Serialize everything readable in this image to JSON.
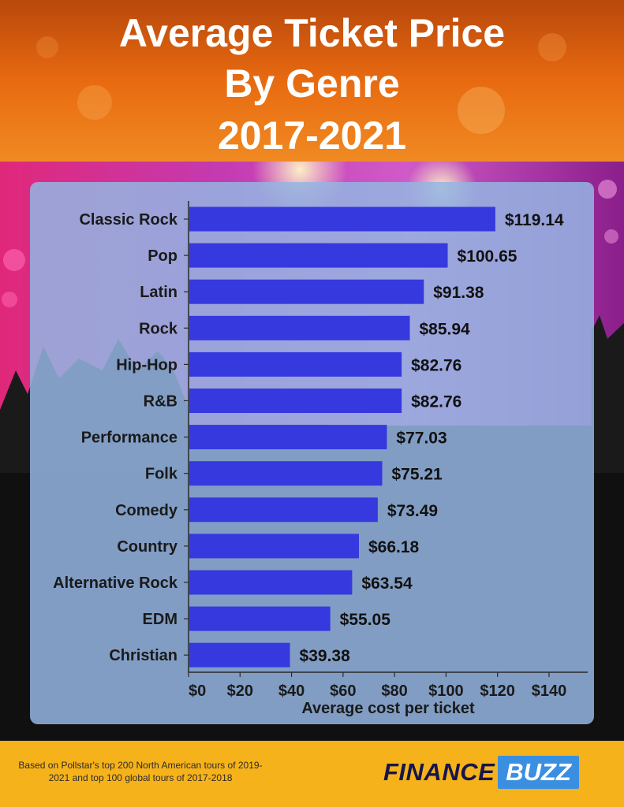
{
  "header": {
    "title_line1": "Average Ticket Price",
    "title_line2": "By Genre",
    "title_line3": "2017-2021"
  },
  "footer": {
    "note": "Based on Pollstar's top 200 North American tours of 2019-2021 and top 100 global tours of 2017-2018",
    "logo_part1": "FINANCE",
    "logo_part2": "BUZZ"
  },
  "colors": {
    "bar": "#3539de",
    "panel": "#94b4e2",
    "footer": "#f6b21b",
    "header_orange": "#e86a10",
    "logo_blue": "#3a8fe0",
    "logo_navy": "#16164a"
  },
  "chart_data": {
    "type": "bar",
    "orientation": "horizontal",
    "title": "Average Ticket Price By Genre 2017-2021",
    "xlabel": "Average cost per ticket",
    "ylabel": "",
    "xlim": [
      0,
      150
    ],
    "x_ticks": [
      0,
      20,
      40,
      60,
      80,
      100,
      120,
      140
    ],
    "x_tick_labels": [
      "$0",
      "$20",
      "$40",
      "$60",
      "$80",
      "$100",
      "$120",
      "$140"
    ],
    "categories": [
      "Classic Rock",
      "Pop",
      "Latin",
      "Rock",
      "Hip-Hop",
      "R&B",
      "Performance",
      "Folk",
      "Comedy",
      "Country",
      "Alternative Rock",
      "EDM",
      "Christian"
    ],
    "values": [
      119.14,
      100.65,
      91.38,
      85.94,
      82.76,
      82.76,
      77.03,
      75.21,
      73.49,
      66.18,
      63.54,
      55.05,
      39.38
    ],
    "value_labels": [
      "$119.14",
      "$100.65",
      "$91.38",
      "$85.94",
      "$82.76",
      "$82.76",
      "$77.03",
      "$75.21",
      "$73.49",
      "$66.18",
      "$63.54",
      "$55.05",
      "$39.38"
    ],
    "grid": false,
    "legend": "none"
  }
}
